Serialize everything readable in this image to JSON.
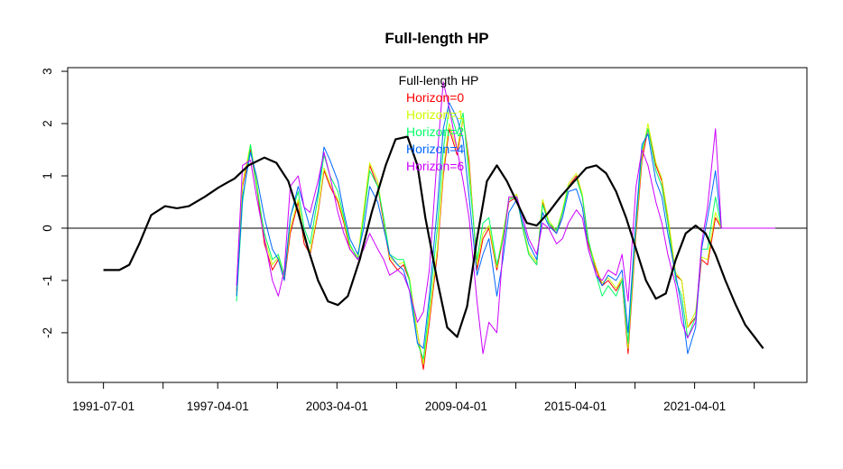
{
  "chart_data": {
    "type": "line",
    "title": "Full-length HP",
    "xlabel": "",
    "ylabel": "",
    "x_tick_labels": [
      "1991-07-01",
      "1997-04-01",
      "2003-04-01",
      "2009-04-01",
      "2015-04-01",
      "2021-04-01"
    ],
    "x_tick_values": [
      1991.5,
      1997.25,
      2003.25,
      2009.25,
      2015.25,
      2021.25
    ],
    "x_minor_tick_values": [
      1994.5,
      2000.25,
      2006.25,
      2012.25,
      2018.25,
      2024.25
    ],
    "y_ticks": [
      -2,
      -1,
      0,
      1,
      2,
      3
    ],
    "y_tick_labels": [
      "-2",
      "-1",
      "0",
      "1",
      "2",
      "3"
    ],
    "xlim": [
      1989.7,
      2026.9
    ],
    "ylim": [
      -2.95,
      3.07
    ],
    "hline": 0,
    "legend": {
      "position": "top-center",
      "title": "Full-length HP",
      "entries": [
        {
          "label": "Horizon=0",
          "color": "#ff0000"
        },
        {
          "label": "Horizon=1",
          "color": "#ccff00"
        },
        {
          "label": "Horizon=2",
          "color": "#00ff66"
        },
        {
          "label": "Horizon=4",
          "color": "#0066ff"
        },
        {
          "label": "Horizon=6",
          "color": "#cc00ff"
        }
      ]
    },
    "series": [
      {
        "name": "Full-length HP",
        "color": "#000000",
        "x": [
          1991.5,
          1992.3,
          1992.8,
          1993.3,
          1993.9,
          1994.6,
          1995.2,
          1995.8,
          1996.6,
          1997.3,
          1998.1,
          1998.8,
          1999.6,
          2000.2,
          2000.8,
          2001.3,
          2001.8,
          2002.3,
          2002.8,
          2003.3,
          2003.8,
          2004.4,
          2005.0,
          2005.7,
          2006.2,
          2006.8,
          2007.3,
          2007.7,
          2008.3,
          2008.8,
          2009.3,
          2009.8,
          2010.3,
          2010.8,
          2011.3,
          2011.8,
          2012.3,
          2012.8,
          2013.3,
          2013.9,
          2014.5,
          2015.2,
          2015.8,
          2016.3,
          2016.8,
          2017.3,
          2017.8,
          2018.3,
          2018.8,
          2019.3,
          2019.8,
          2020.3,
          2020.8,
          2021.3,
          2021.8,
          2022.3,
          2022.8,
          2023.3,
          2023.8,
          2024.3,
          2024.7
        ],
        "values": [
          -0.8,
          -0.8,
          -0.7,
          -0.3,
          0.25,
          0.42,
          0.38,
          0.42,
          0.6,
          0.78,
          0.95,
          1.2,
          1.35,
          1.25,
          0.9,
          0.3,
          -0.4,
          -1.0,
          -1.4,
          -1.47,
          -1.3,
          -0.6,
          0.3,
          1.2,
          1.7,
          1.75,
          1.2,
          0.2,
          -1.0,
          -1.9,
          -2.08,
          -1.5,
          -0.2,
          0.9,
          1.2,
          0.9,
          0.5,
          0.1,
          0.05,
          0.3,
          0.6,
          0.9,
          1.15,
          1.2,
          1.05,
          0.7,
          0.2,
          -0.4,
          -1.0,
          -1.35,
          -1.25,
          -0.6,
          -0.1,
          0.05,
          -0.1,
          -0.5,
          -1.0,
          -1.45,
          -1.85,
          -2.1,
          -2.3
        ]
      },
      {
        "name": "Horizon=0",
        "color": "#ff0000",
        "x": [
          1998.2,
          1998.5,
          1998.9,
          1999.2,
          1999.6,
          2000.0,
          2000.3,
          2000.6,
          2000.9,
          2001.3,
          2001.6,
          2001.9,
          2002.3,
          2002.6,
          2002.9,
          2003.3,
          2003.6,
          2003.9,
          2004.3,
          2004.6,
          2004.9,
          2005.3,
          2005.6,
          2005.9,
          2006.3,
          2006.6,
          2006.9,
          2007.3,
          2007.6,
          2007.9,
          2008.3,
          2008.6,
          2008.9,
          2009.3,
          2009.6,
          2009.9,
          2010.3,
          2010.6,
          2010.9,
          2011.3,
          2011.6,
          2011.9,
          2012.3,
          2012.6,
          2012.9,
          2013.3,
          2013.6,
          2013.9,
          2014.3,
          2014.6,
          2014.9,
          2015.3,
          2015.6,
          2015.9,
          2016.3,
          2016.6,
          2016.9,
          2017.3,
          2017.6,
          2017.9,
          2018.3,
          2018.6,
          2018.9,
          2019.3,
          2019.6,
          2019.9,
          2020.3,
          2020.6,
          2020.9,
          2021.3,
          2021.6,
          2021.9,
          2022.3,
          2022.6,
          2022.9,
          2023.3,
          2023.6,
          2023.9,
          2024.3,
          2024.6,
          2024.9,
          2025.3
        ],
        "values": [
          -1.2,
          0.8,
          1.5,
          0.8,
          -0.3,
          -0.8,
          -0.6,
          -1.0,
          -0.1,
          0.5,
          -0.3,
          -0.5,
          0.3,
          1.1,
          0.8,
          0.5,
          0.1,
          -0.4,
          -0.6,
          0.3,
          1.2,
          0.8,
          0.1,
          -0.6,
          -0.8,
          -0.7,
          -1.0,
          -2.0,
          -2.7,
          -1.8,
          -0.5,
          1.0,
          1.9,
          1.4,
          2.1,
          1.3,
          -0.8,
          -0.2,
          0.0,
          -0.8,
          -0.2,
          0.5,
          0.6,
          0.0,
          -0.5,
          -0.7,
          0.5,
          0.1,
          -0.1,
          0.3,
          0.8,
          1.0,
          0.6,
          -0.3,
          -0.8,
          -1.1,
          -1.0,
          -1.2,
          -1.0,
          -2.4,
          -0.1,
          1.3,
          1.9,
          1.2,
          0.9,
          0.2,
          -0.9,
          -1.0,
          -1.9,
          -1.7,
          -0.6,
          -0.7,
          0.2,
          0.0,
          0.0,
          0.0,
          0.0,
          0.0,
          0.0,
          0.0,
          0.0,
          0.0
        ]
      },
      {
        "name": "Horizon=1",
        "color": "#ccff00",
        "x": [
          1998.2,
          1998.5,
          1998.9,
          1999.2,
          1999.6,
          2000.0,
          2000.3,
          2000.6,
          2000.9,
          2001.3,
          2001.6,
          2001.9,
          2002.3,
          2002.6,
          2002.9,
          2003.3,
          2003.6,
          2003.9,
          2004.3,
          2004.6,
          2004.9,
          2005.3,
          2005.6,
          2005.9,
          2006.3,
          2006.6,
          2006.9,
          2007.3,
          2007.6,
          2007.9,
          2008.3,
          2008.6,
          2008.9,
          2009.3,
          2009.6,
          2009.9,
          2010.3,
          2010.6,
          2010.9,
          2011.3,
          2011.6,
          2011.9,
          2012.3,
          2012.6,
          2012.9,
          2013.3,
          2013.6,
          2013.9,
          2014.3,
          2014.6,
          2014.9,
          2015.3,
          2015.6,
          2015.9,
          2016.3,
          2016.6,
          2016.9,
          2017.3,
          2017.6,
          2017.9,
          2018.3,
          2018.6,
          2018.9,
          2019.3,
          2019.6,
          2019.9,
          2020.3,
          2020.6,
          2020.9,
          2021.3,
          2021.6,
          2021.9,
          2022.3,
          2022.6,
          2022.9,
          2023.3,
          2023.6,
          2023.9,
          2024.3,
          2024.6,
          2024.9,
          2025.3
        ],
        "values": [
          -1.25,
          0.85,
          1.6,
          0.9,
          -0.2,
          -0.7,
          -0.55,
          -0.95,
          0.0,
          0.55,
          -0.2,
          -0.45,
          0.35,
          1.15,
          0.85,
          0.55,
          0.15,
          -0.35,
          -0.55,
          0.35,
          1.25,
          0.9,
          0.15,
          -0.55,
          -0.7,
          -0.65,
          -0.95,
          -2.0,
          -2.6,
          -1.7,
          -0.4,
          1.1,
          2.0,
          1.5,
          2.1,
          1.2,
          -0.7,
          -0.1,
          0.05,
          -0.75,
          -0.1,
          0.55,
          0.65,
          0.05,
          -0.45,
          -0.65,
          0.55,
          0.15,
          -0.05,
          0.35,
          0.85,
          1.05,
          0.65,
          -0.25,
          -0.75,
          -1.05,
          -0.95,
          -1.15,
          -0.95,
          -2.3,
          0.0,
          1.4,
          2.0,
          1.25,
          0.95,
          0.25,
          -0.85,
          -1.0,
          -1.9,
          -1.6,
          -0.55,
          -0.6,
          0.3,
          0.0,
          0.0,
          0.0,
          0.0,
          0.0,
          0.0,
          0.0,
          0.0,
          0.0
        ]
      },
      {
        "name": "Horizon=2",
        "color": "#00ff66",
        "x": [
          1998.2,
          1998.5,
          1998.9,
          1999.2,
          1999.6,
          2000.0,
          2000.3,
          2000.6,
          2000.9,
          2001.3,
          2001.6,
          2001.9,
          2002.3,
          2002.6,
          2002.9,
          2003.3,
          2003.6,
          2003.9,
          2004.3,
          2004.6,
          2004.9,
          2005.3,
          2005.6,
          2005.9,
          2006.3,
          2006.6,
          2006.9,
          2007.3,
          2007.6,
          2007.9,
          2008.3,
          2008.6,
          2008.9,
          2009.3,
          2009.6,
          2009.9,
          2010.3,
          2010.6,
          2010.9,
          2011.3,
          2011.6,
          2011.9,
          2012.3,
          2012.6,
          2012.9,
          2013.3,
          2013.6,
          2013.9,
          2014.3,
          2014.6,
          2014.9,
          2015.3,
          2015.6,
          2015.9,
          2016.3,
          2016.6,
          2016.9,
          2017.3,
          2017.6,
          2017.9,
          2018.3,
          2018.6,
          2018.9,
          2019.3,
          2019.6,
          2019.9,
          2020.3,
          2020.6,
          2020.9,
          2021.3,
          2021.6,
          2021.9,
          2022.3,
          2022.6,
          2022.9,
          2023.3,
          2023.6,
          2023.9,
          2024.3,
          2024.6,
          2024.9,
          2025.3
        ],
        "values": [
          -1.4,
          0.5,
          1.6,
          0.8,
          -0.1,
          -0.6,
          -0.5,
          -0.9,
          0.2,
          0.7,
          0.0,
          -0.3,
          0.6,
          1.4,
          1.0,
          0.7,
          0.2,
          -0.3,
          -0.6,
          0.2,
          1.1,
          0.8,
          0.2,
          -0.5,
          -0.6,
          -0.6,
          -1.0,
          -2.2,
          -2.5,
          -1.5,
          0.0,
          1.5,
          2.3,
          1.8,
          2.2,
          1.0,
          -0.6,
          0.1,
          0.2,
          -0.7,
          -0.2,
          0.55,
          0.6,
          0.0,
          -0.5,
          -0.7,
          0.45,
          0.1,
          -0.05,
          0.3,
          0.8,
          0.95,
          0.6,
          -0.2,
          -0.9,
          -1.3,
          -1.1,
          -1.3,
          -1.0,
          -2.2,
          0.1,
          1.5,
          1.9,
          1.1,
          0.8,
          0.1,
          -1.0,
          -1.3,
          -2.1,
          -1.7,
          -0.4,
          -0.4,
          0.6,
          0.0,
          0.0,
          0.0,
          0.0,
          0.0,
          0.0,
          0.0,
          0.0,
          0.0
        ]
      },
      {
        "name": "Horizon=4",
        "color": "#0066ff",
        "x": [
          1998.2,
          1998.5,
          1998.9,
          1999.2,
          1999.6,
          2000.0,
          2000.3,
          2000.6,
          2000.9,
          2001.3,
          2001.6,
          2001.9,
          2002.3,
          2002.6,
          2002.9,
          2003.3,
          2003.6,
          2003.9,
          2004.3,
          2004.6,
          2004.9,
          2005.3,
          2005.6,
          2005.9,
          2006.3,
          2006.6,
          2006.9,
          2007.3,
          2007.6,
          2007.9,
          2008.3,
          2008.6,
          2008.9,
          2009.3,
          2009.6,
          2009.9,
          2010.3,
          2010.6,
          2010.9,
          2011.3,
          2011.6,
          2011.9,
          2012.3,
          2012.6,
          2012.9,
          2013.3,
          2013.6,
          2013.9,
          2014.3,
          2014.6,
          2014.9,
          2015.3,
          2015.6,
          2015.9,
          2016.3,
          2016.6,
          2016.9,
          2017.3,
          2017.6,
          2017.9,
          2018.3,
          2018.6,
          2018.9,
          2019.3,
          2019.6,
          2019.9,
          2020.3,
          2020.6,
          2020.9,
          2021.3,
          2021.6,
          2021.9,
          2022.3,
          2022.6,
          2022.9,
          2023.3,
          2023.6,
          2023.9,
          2024.3,
          2024.6,
          2024.9,
          2025.3
        ],
        "values": [
          -1.3,
          0.6,
          1.45,
          1.0,
          0.2,
          -0.4,
          -0.6,
          -1.0,
          0.2,
          0.8,
          0.4,
          0.0,
          0.7,
          1.55,
          1.3,
          0.9,
          0.3,
          -0.2,
          -0.5,
          0.0,
          0.8,
          0.5,
          0.0,
          -0.5,
          -0.7,
          -0.8,
          -1.2,
          -2.2,
          -2.3,
          -1.3,
          0.4,
          1.9,
          2.4,
          2.1,
          1.7,
          0.6,
          -0.9,
          -0.5,
          -0.2,
          -1.3,
          -0.6,
          0.3,
          0.55,
          0.1,
          -0.3,
          -0.6,
          0.3,
          0.05,
          -0.1,
          0.2,
          0.7,
          0.75,
          0.4,
          -0.4,
          -0.9,
          -1.1,
          -0.9,
          -1.0,
          -0.8,
          -2.0,
          0.2,
          1.6,
          1.8,
          0.9,
          0.6,
          -0.1,
          -0.9,
          -1.5,
          -2.4,
          -1.9,
          -0.4,
          0.2,
          1.1,
          0.0,
          0.0,
          0.0,
          0.0,
          0.0,
          0.0,
          0.0,
          0.0,
          0.0
        ]
      },
      {
        "name": "Horizon=6",
        "color": "#cc00ff",
        "x": [
          1998.2,
          1998.5,
          1998.9,
          1999.2,
          1999.6,
          2000.0,
          2000.3,
          2000.6,
          2000.9,
          2001.3,
          2001.6,
          2001.9,
          2002.3,
          2002.6,
          2002.9,
          2003.3,
          2003.6,
          2003.9,
          2004.3,
          2004.6,
          2004.9,
          2005.3,
          2005.6,
          2005.9,
          2006.3,
          2006.6,
          2006.9,
          2007.3,
          2007.6,
          2007.9,
          2008.3,
          2008.6,
          2008.9,
          2009.3,
          2009.6,
          2009.9,
          2010.3,
          2010.6,
          2010.9,
          2011.3,
          2011.6,
          2011.9,
          2012.3,
          2012.6,
          2012.9,
          2013.3,
          2013.6,
          2013.9,
          2014.3,
          2014.6,
          2014.9,
          2015.3,
          2015.6,
          2015.9,
          2016.3,
          2016.6,
          2016.9,
          2017.3,
          2017.6,
          2017.9,
          2018.3,
          2018.6,
          2018.9,
          2019.3,
          2019.6,
          2019.9,
          2020.3,
          2020.6,
          2020.9,
          2021.3,
          2021.6,
          2021.9,
          2022.3,
          2022.6,
          2022.9,
          2023.3,
          2023.6,
          2023.9,
          2024.3,
          2024.6,
          2024.9,
          2025.3
        ],
        "values": [
          -1.1,
          1.2,
          1.3,
          0.6,
          -0.2,
          -1.0,
          -1.3,
          -0.8,
          0.8,
          1.0,
          0.4,
          0.3,
          0.9,
          1.45,
          1.0,
          0.3,
          -0.1,
          -0.4,
          -0.6,
          -0.4,
          -0.1,
          -0.4,
          -0.6,
          -0.9,
          -0.8,
          -0.9,
          -1.2,
          -1.8,
          -1.6,
          -0.8,
          1.4,
          2.8,
          2.3,
          1.5,
          0.9,
          0.2,
          -1.4,
          -2.4,
          -1.8,
          -2.0,
          -0.4,
          0.6,
          0.6,
          0.2,
          -0.2,
          -0.5,
          0.1,
          0.0,
          -0.3,
          -0.2,
          0.1,
          0.35,
          0.2,
          -0.4,
          -0.9,
          -1.0,
          -0.8,
          -0.9,
          -0.5,
          -1.4,
          0.8,
          1.5,
          1.2,
          0.5,
          0.1,
          -0.5,
          -1.1,
          -1.8,
          -2.1,
          -1.8,
          -0.3,
          0.4,
          1.9,
          0.0,
          0.0,
          0.0,
          0.0,
          0.0,
          0.0,
          0.0,
          0.0,
          0.0
        ]
      }
    ]
  }
}
